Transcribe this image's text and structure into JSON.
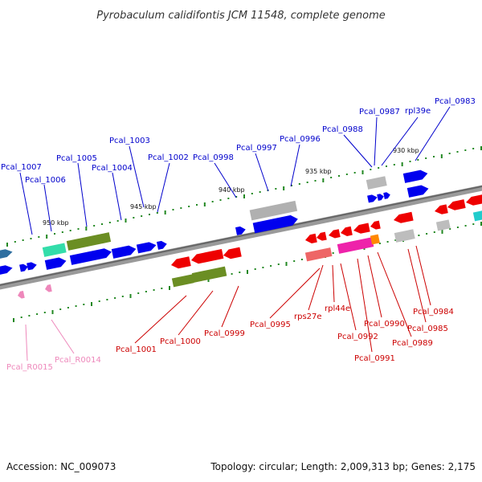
{
  "title": "Pyrobaculum calidifontis JCM 11548, complete genome",
  "accession": "Accession: NC_009073",
  "topology": "Topology: circular; Length: 2,009,313 bp; Genes: 2,175",
  "colors": {
    "forward_label": "#0000cc",
    "reverse_label": "#cc0000",
    "rna_label": "#ee88bb",
    "backbone": "#777777",
    "tick": "#228822"
  },
  "scale_labels": [
    "950 kbp",
    "945 kbp",
    "940 kbp",
    "935 kbp",
    "930 kbp"
  ],
  "forward_genes": [
    "Pcal_1007",
    "Pcal_1006",
    "Pcal_1005",
    "Pcal_1004",
    "Pcal_1003",
    "Pcal_1002",
    "Pcal_0998",
    "Pcal_0997",
    "Pcal_0996",
    "Pcal_0988",
    "Pcal_0987",
    "rpl39e",
    "Pcal_0983"
  ],
  "reverse_genes": [
    "Pcal_1001",
    "Pcal_1000",
    "Pcal_0999",
    "Pcal_0995",
    "rps27e",
    "rpl44e",
    "Pcal_0992",
    "Pcal_0991",
    "Pcal_0990",
    "Pcal_0989",
    "Pcal_0985",
    "Pcal_0984"
  ],
  "rna_genes": [
    "Pcal_R0015",
    "Pcal_R0014"
  ]
}
